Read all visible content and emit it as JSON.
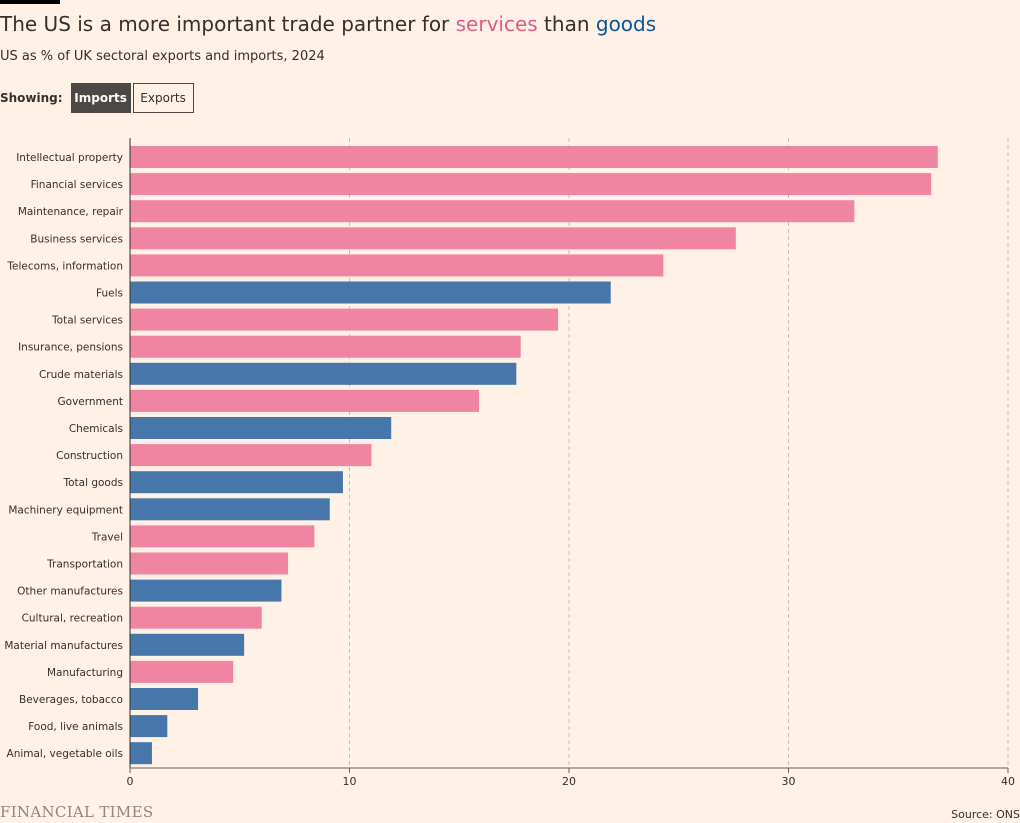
{
  "header": {
    "title_part1": "The US is a more important trade partner for ",
    "title_services": "services",
    "title_part2": " than ",
    "title_goods": "goods",
    "subtitle": "US as % of UK sectoral exports and imports, 2024"
  },
  "controls": {
    "showing_label": "Showing:",
    "imports_label": "Imports",
    "exports_label": "Exports",
    "selected": "Imports"
  },
  "colors": {
    "services": "#ee7e9f",
    "goods": "#3c6fa6",
    "background": "#fff1e5"
  },
  "chart_data": {
    "type": "bar",
    "orientation": "horizontal",
    "title": "The US is a more important trade partner for services than goods",
    "subtitle": "US as % of UK sectoral exports and imports, 2024",
    "xlim": [
      0,
      40
    ],
    "xticks": [
      0,
      10,
      20,
      30,
      40
    ],
    "grid": true,
    "categories": [
      "Intellectual property",
      "Financial services",
      "Maintenance, repair",
      "Business services",
      "Telecoms, information",
      "Fuels",
      "Total services",
      "Insurance, pensions",
      "Crude materials",
      "Government",
      "Chemicals",
      "Construction",
      "Total goods",
      "Machinery equipment",
      "Travel",
      "Transportation",
      "Other manufactures",
      "Cultural, recreation",
      "Material manufactures",
      "Manufacturing",
      "Beverages, tobacco",
      "Food, live animals",
      "Animal, vegetable oils"
    ],
    "values": [
      36.8,
      36.5,
      33.0,
      27.6,
      24.3,
      21.9,
      19.5,
      17.8,
      17.6,
      15.9,
      11.9,
      11.0,
      9.7,
      9.1,
      8.4,
      7.2,
      6.9,
      6.0,
      5.2,
      4.7,
      3.1,
      1.7,
      1.0
    ],
    "groups": [
      "services",
      "services",
      "services",
      "services",
      "services",
      "goods",
      "services",
      "services",
      "goods",
      "services",
      "goods",
      "services",
      "goods",
      "goods",
      "services",
      "services",
      "goods",
      "services",
      "goods",
      "services",
      "goods",
      "goods",
      "goods"
    ]
  },
  "footer": {
    "logo": "FINANCIAL TIMES",
    "source": "Source: ONS"
  }
}
